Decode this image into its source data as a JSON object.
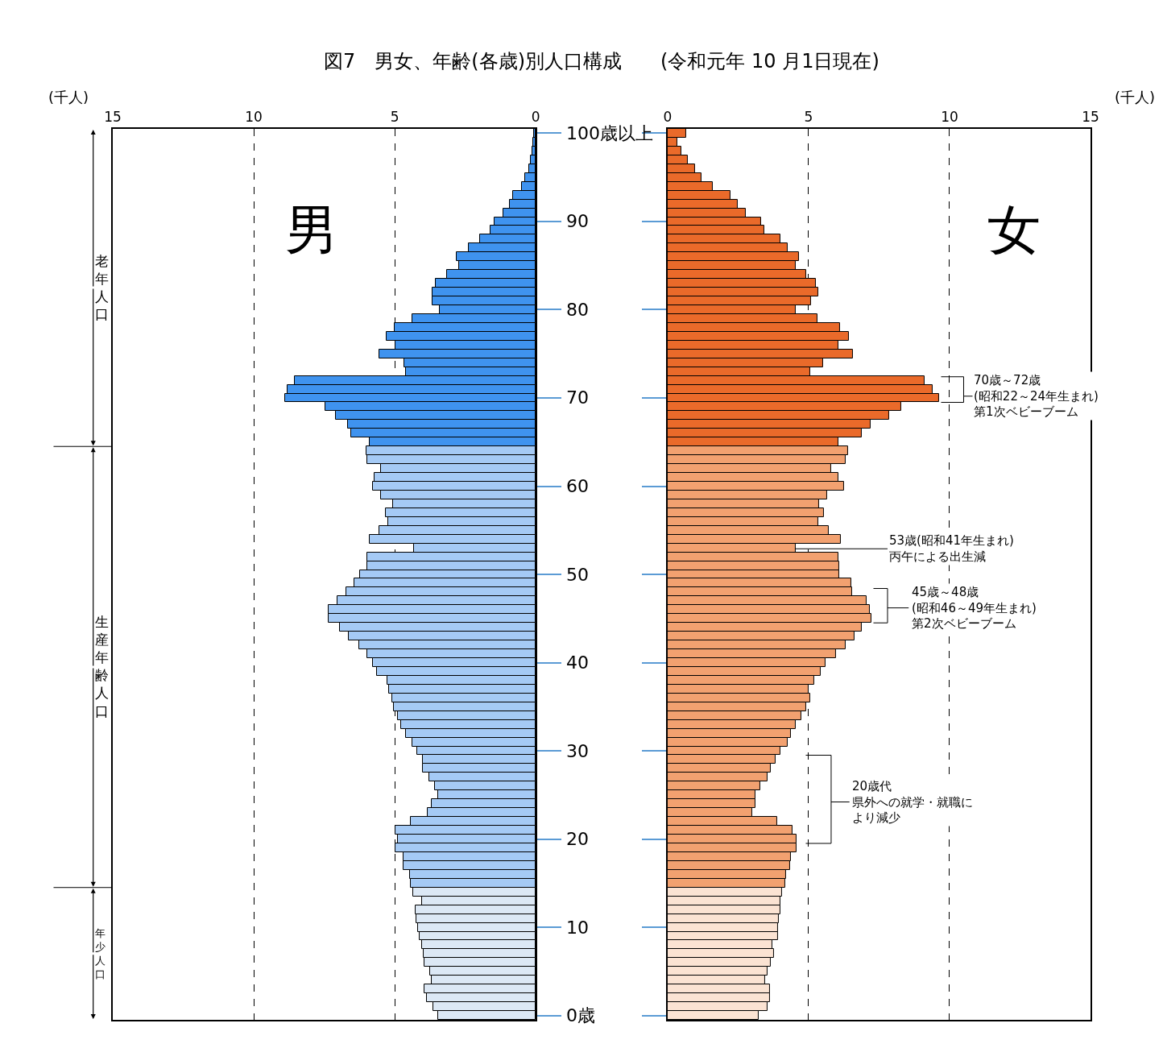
{
  "chart_data": [
    {
      "type": "bar",
      "orientation": "horizontal",
      "title": "図7　男女、年齢(各歳)別人口構成　　(令和元年 10 月1日現在)",
      "xlabel": "(千人)",
      "categories": [
        "100歳以上",
        null,
        null,
        null,
        null,
        null,
        null,
        null,
        null,
        null,
        "90",
        null,
        null,
        null,
        null,
        null,
        null,
        null,
        null,
        null,
        "80",
        null,
        null,
        null,
        null,
        null,
        null,
        null,
        null,
        null,
        "70",
        null,
        null,
        null,
        null,
        null,
        null,
        null,
        null,
        null,
        "60",
        null,
        null,
        null,
        null,
        null,
        null,
        null,
        null,
        null,
        "50",
        null,
        null,
        null,
        null,
        null,
        null,
        null,
        null,
        null,
        "40",
        null,
        null,
        null,
        null,
        null,
        null,
        null,
        null,
        null,
        "30",
        null,
        null,
        null,
        null,
        null,
        null,
        null,
        null,
        null,
        "20",
        null,
        null,
        null,
        null,
        null,
        null,
        null,
        null,
        null,
        "10",
        null,
        null,
        null,
        null,
        null,
        null,
        null,
        null,
        null,
        "0歳"
      ],
      "xlim": [
        15,
        0
      ],
      "xticks": [
        15,
        10,
        5,
        0
      ],
      "grid": "x",
      "legend": false,
      "annotations": [
        "老年人口",
        "生産年齢人口",
        "年少人口"
      ],
      "series": [
        {
          "name": "男",
          "colors": [
            "#3f93ef",
            "#3f93ef",
            "#3f93ef",
            "#3f93ef",
            "#3f93ef",
            "#3f93ef",
            "#3f93ef",
            "#3f93ef",
            "#3f93ef",
            "#3f93ef",
            "#3f93ef",
            "#3f93ef",
            "#3f93ef",
            "#3f93ef",
            "#3f93ef",
            "#3f93ef",
            "#3f93ef",
            "#3f93ef",
            "#3f93ef",
            "#3f93ef",
            "#3f93ef",
            "#3f93ef",
            "#3f93ef",
            "#3f93ef",
            "#3f93ef",
            "#3f93ef",
            "#3f93ef",
            "#3f93ef",
            "#3f93ef",
            "#3f93ef",
            "#3f93ef",
            "#3f93ef",
            "#3f93ef",
            "#3f93ef",
            "#3f93ef",
            "#3f93ef",
            "#a5caf5",
            "#a5caf5",
            "#a5caf5",
            "#a5caf5",
            "#a5caf5",
            "#a5caf5",
            "#a5caf5",
            "#a5caf5",
            "#a5caf5",
            "#a5caf5",
            "#a5caf5",
            "#a5caf5",
            "#a5caf5",
            "#a5caf5",
            "#a5caf5",
            "#a5caf5",
            "#a5caf5",
            "#a5caf5",
            "#a5caf5",
            "#a5caf5",
            "#a5caf5",
            "#a5caf5",
            "#a5caf5",
            "#a5caf5",
            "#a5caf5",
            "#a5caf5",
            "#a5caf5",
            "#a5caf5",
            "#a5caf5",
            "#a5caf5",
            "#a5caf5",
            "#a5caf5",
            "#a5caf5",
            "#a5caf5",
            "#a5caf5",
            "#a5caf5",
            "#a5caf5",
            "#a5caf5",
            "#a5caf5",
            "#a5caf5",
            "#a5caf5",
            "#a5caf5",
            "#a5caf5",
            "#a5caf5",
            "#a5caf5",
            "#a5caf5",
            "#a5caf5",
            "#a5caf5",
            "#a5caf5",
            "#a5caf5",
            "#dce8f5",
            "#dce8f5",
            "#dce8f5",
            "#dce8f5",
            "#dce8f5",
            "#dce8f5",
            "#dce8f5",
            "#dce8f5",
            "#dce8f5",
            "#dce8f5",
            "#dce8f5",
            "#dce8f5",
            "#dce8f5",
            "#dce8f5",
            "#dce8f5"
          ],
          "values": [
            0.05,
            0.08,
            0.12,
            0.16,
            0.24,
            0.36,
            0.5,
            0.8,
            0.93,
            1.14,
            1.45,
            1.6,
            1.97,
            2.36,
            2.8,
            2.72,
            3.15,
            3.53,
            3.67,
            3.67,
            3.4,
            4.36,
            5.0,
            5.28,
            4.98,
            5.53,
            4.67,
            4.59,
            8.54,
            8.8,
            8.89,
            7.46,
            7.09,
            6.67,
            6.54,
            5.89,
            6.01,
            5.97,
            5.5,
            5.71,
            5.76,
            5.5,
            5.06,
            5.32,
            5.24,
            5.53,
            5.88,
            4.32,
            5.97,
            5.97,
            6.23,
            6.42,
            6.72,
            7.03,
            7.33,
            7.33,
            6.95,
            6.63,
            6.26,
            5.98,
            5.77,
            5.64,
            5.25,
            5.2,
            5.09,
            5.04,
            4.9,
            4.77,
            4.59,
            4.37,
            4.21,
            3.99,
            3.99,
            3.77,
            3.56,
            3.47,
            3.68,
            3.83,
            4.43,
            4.98,
            4.9,
            4.98,
            4.69,
            4.69,
            4.47,
            4.43,
            4.35,
            4.03,
            4.26,
            4.22,
            4.16,
            4.12,
            4.03,
            3.98,
            3.95,
            3.73,
            3.7,
            3.95,
            3.87,
            3.64,
            3.47
          ]
        }
      ]
    },
    {
      "type": "bar",
      "orientation": "horizontal",
      "xlabel": "(千人)",
      "tick_labels": "x",
      "categories": [
        null,
        null,
        null,
        null,
        null,
        null,
        null,
        null,
        null,
        null,
        null,
        null,
        null,
        null,
        null,
        null,
        null,
        null,
        null,
        null,
        null,
        null,
        null,
        null,
        null,
        null,
        null,
        null,
        null,
        null,
        null,
        null,
        null,
        null,
        null,
        null,
        null,
        null,
        null,
        null,
        null,
        null,
        null,
        null,
        null,
        null,
        null,
        null,
        null,
        null,
        null,
        null,
        null,
        null,
        null,
        null,
        null,
        null,
        null,
        null,
        null,
        null,
        null,
        null,
        null,
        null,
        null,
        null,
        null,
        null,
        null,
        null,
        null,
        null,
        null,
        null,
        null,
        null,
        null,
        null,
        null,
        null,
        null,
        null,
        null,
        null,
        null,
        null,
        null,
        null,
        null,
        null,
        null,
        null,
        null,
        null,
        null,
        null,
        null,
        null,
        null
      ],
      "xlim": [
        0,
        15
      ],
      "xticks": [
        0,
        5,
        10,
        15
      ],
      "grid": "x",
      "legend": false,
      "annotations": [
        "70歳～72歳(昭和22～24年生まれ)第1次ベビーブーム",
        {
          "text": "53歳(昭和41年生まれ)丙午による出生減",
          "x": 4.53
        },
        "45歳～48歳(昭和46～49年生まれ)第2次ベビーブーム",
        "20歳代県外への就学・就職により減少"
      ],
      "series": [
        {
          "name": "女",
          "colors": [
            "#ea6a2a",
            "#ea6a2a",
            "#ea6a2a",
            "#ea6a2a",
            "#ea6a2a",
            "#ea6a2a",
            "#ea6a2a",
            "#ea6a2a",
            "#ea6a2a",
            "#ea6a2a",
            "#ea6a2a",
            "#ea6a2a",
            "#ea6a2a",
            "#ea6a2a",
            "#ea6a2a",
            "#ea6a2a",
            "#ea6a2a",
            "#ea6a2a",
            "#ea6a2a",
            "#ea6a2a",
            "#ea6a2a",
            "#ea6a2a",
            "#ea6a2a",
            "#ea6a2a",
            "#ea6a2a",
            "#ea6a2a",
            "#ea6a2a",
            "#ea6a2a",
            "#ea6a2a",
            "#ea6a2a",
            "#ea6a2a",
            "#ea6a2a",
            "#ea6a2a",
            "#ea6a2a",
            "#ea6a2a",
            "#ea6a2a",
            "#f2a170",
            "#f2a170",
            "#f2a170",
            "#f2a170",
            "#f2a170",
            "#f2a170",
            "#f2a170",
            "#f2a170",
            "#f2a170",
            "#f2a170",
            "#f2a170",
            "#f2a170",
            "#f2a170",
            "#f2a170",
            "#f2a170",
            "#f2a170",
            "#f2a170",
            "#f2a170",
            "#f2a170",
            "#f2a170",
            "#f2a170",
            "#f2a170",
            "#f2a170",
            "#f2a170",
            "#f2a170",
            "#f2a170",
            "#f2a170",
            "#f2a170",
            "#f2a170",
            "#f2a170",
            "#f2a170",
            "#f2a170",
            "#f2a170",
            "#f2a170",
            "#f2a170",
            "#f2a170",
            "#f2a170",
            "#f2a170",
            "#f2a170",
            "#f2a170",
            "#f2a170",
            "#f2a170",
            "#f2a170",
            "#f2a170",
            "#f2a170",
            "#f2a170",
            "#f2a170",
            "#f2a170",
            "#f2a170",
            "#f2a170",
            "#fbe3d3",
            "#fbe3d3",
            "#fbe3d3",
            "#fbe3d3",
            "#fbe3d3",
            "#fbe3d3",
            "#fbe3d3",
            "#fbe3d3",
            "#fbe3d3",
            "#fbe3d3",
            "#fbe3d3",
            "#fbe3d3",
            "#fbe3d3",
            "#fbe3d3",
            "#fbe3d3"
          ],
          "values": [
            0.67,
            0.34,
            0.49,
            0.7,
            0.96,
            1.21,
            1.6,
            2.23,
            2.48,
            2.78,
            3.32,
            3.44,
            3.99,
            4.25,
            4.67,
            4.55,
            4.91,
            5.25,
            5.33,
            5.08,
            4.54,
            5.3,
            6.11,
            6.44,
            6.06,
            6.56,
            5.5,
            5.05,
            9.12,
            9.41,
            9.64,
            8.29,
            7.87,
            7.19,
            6.89,
            6.06,
            6.39,
            6.31,
            5.8,
            6.06,
            6.27,
            5.67,
            5.37,
            5.55,
            5.33,
            5.72,
            6.15,
            4.53,
            6.06,
            6.09,
            6.09,
            6.5,
            6.54,
            7.06,
            7.17,
            7.22,
            6.89,
            6.64,
            6.3,
            5.97,
            5.59,
            5.43,
            5.2,
            4.99,
            5.05,
            4.92,
            4.75,
            4.55,
            4.37,
            4.25,
            4.0,
            3.84,
            3.66,
            3.53,
            3.28,
            3.11,
            3.11,
            3.0,
            3.88,
            4.43,
            4.58,
            4.58,
            4.38,
            4.33,
            4.21,
            4.16,
            4.06,
            3.99,
            3.99,
            3.94,
            3.92,
            3.92,
            3.71,
            3.78,
            3.66,
            3.53,
            3.45,
            3.62,
            3.62,
            3.53,
            3.24
          ]
        }
      ]
    }
  ]
}
